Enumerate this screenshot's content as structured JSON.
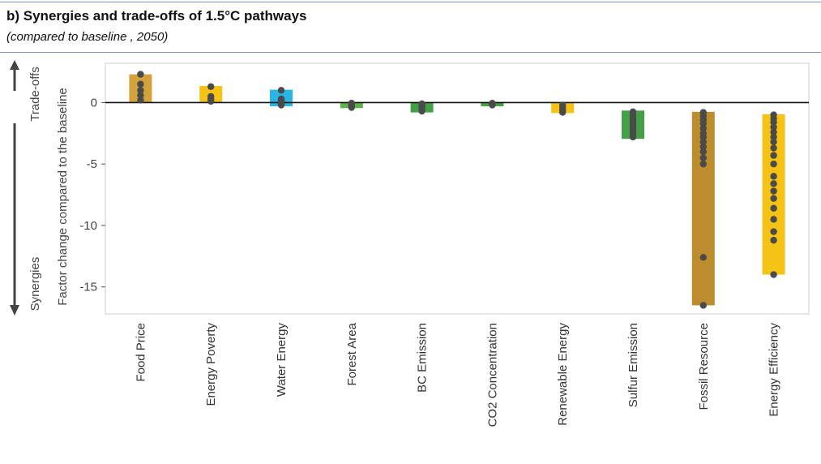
{
  "header": {
    "title": "b) Synergies and trade-offs of 1.5°C pathways",
    "subtitle": "(compared to baseline , 2050)"
  },
  "chart_data": {
    "type": "bar",
    "ylabel": "Factor change compared to the baseline",
    "annotations": {
      "up": "Trade-offs",
      "down": "Synergies"
    },
    "ylim": [
      -17.2,
      3.2
    ],
    "yticks": [
      0,
      -5,
      -10,
      -15
    ],
    "ytick_labels": [
      "0",
      "-5",
      "-10",
      "-15"
    ],
    "grid": false,
    "categories": [
      {
        "name": "Food Price",
        "range": [
          0.0,
          2.3
        ],
        "color": "#d4a23a",
        "points": [
          2.3,
          1.5,
          1.0,
          0.6,
          0.2
        ]
      },
      {
        "name": "Energy Poverty",
        "range": [
          0.0,
          1.35
        ],
        "color": "#f5c316",
        "points": [
          1.3,
          0.5,
          0.3,
          0.1
        ]
      },
      {
        "name": "Water Energy",
        "range": [
          -0.3,
          1.05
        ],
        "color": "#27b6e6",
        "points": [
          1.0,
          0.3,
          0.1,
          -0.1,
          -0.2
        ]
      },
      {
        "name": "Forest Area",
        "range": [
          -0.45,
          0.0
        ],
        "color": "#5db446",
        "points": [
          -0.05,
          -0.15,
          -0.3,
          -0.4
        ]
      },
      {
        "name": "BC Emission",
        "range": [
          -0.8,
          0.0
        ],
        "color": "#43a046",
        "points": [
          -0.1,
          -0.2,
          -0.3,
          -0.45,
          -0.55,
          -0.7
        ]
      },
      {
        "name": "CO2 Concentration",
        "range": [
          -0.3,
          0.0
        ],
        "color": "#43a046",
        "points": [
          -0.05,
          -0.1,
          -0.2
        ]
      },
      {
        "name": "Renewable Energy",
        "range": [
          -0.85,
          0.0
        ],
        "color": "#f5c316",
        "points": [
          -0.2,
          -0.35,
          -0.5,
          -0.65,
          -0.8
        ]
      },
      {
        "name": "Sulfur Emission",
        "range": [
          -2.95,
          -0.65
        ],
        "color": "#43a046",
        "points": [
          -0.75,
          -1.0,
          -1.2,
          -1.4,
          -1.6,
          -1.8,
          -2.0,
          -2.2,
          -2.4,
          -2.6,
          -2.8
        ]
      },
      {
        "name": "Fossil Resource",
        "range": [
          -16.5,
          -0.75
        ],
        "color": "#bd8c2c",
        "points": [
          -0.8,
          -1.1,
          -1.4,
          -1.7,
          -2.1,
          -2.5,
          -2.8,
          -3.2,
          -3.6,
          -4.0,
          -4.5,
          -5.0,
          -12.6,
          -16.5
        ]
      },
      {
        "name": "Energy Efficiency",
        "range": [
          -14.0,
          -0.95
        ],
        "color": "#f5c316",
        "points": [
          -1.0,
          -1.3,
          -1.6,
          -2.0,
          -2.4,
          -2.8,
          -3.2,
          -3.7,
          -4.3,
          -5.0,
          -6.0,
          -6.6,
          -7.2,
          -7.8,
          -8.6,
          -9.5,
          -10.5,
          -11.2,
          -14.0
        ]
      }
    ]
  }
}
